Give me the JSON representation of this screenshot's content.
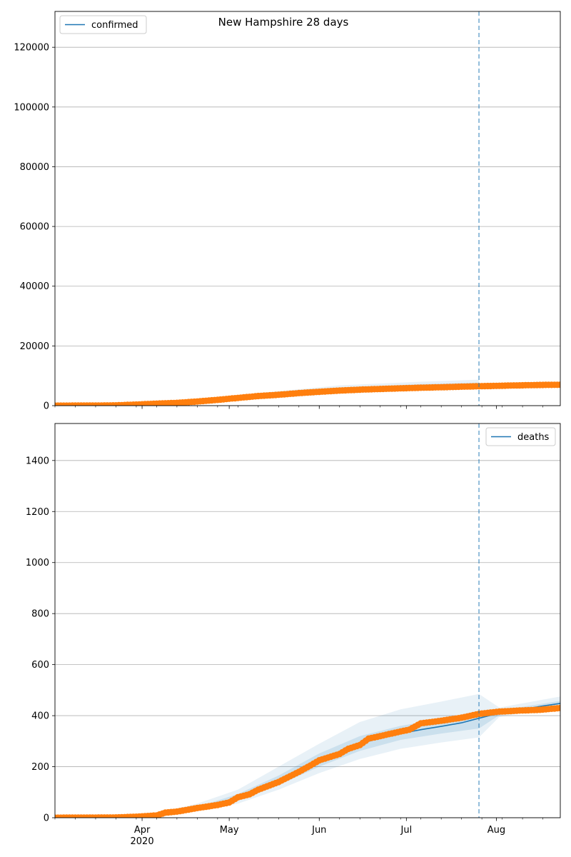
{
  "figure_title": "New Hampshire 28 days",
  "colors": {
    "model": "#1f77b4",
    "observed": "#ff7f0e",
    "band": "#1f77b4",
    "grid": "#b0b0b0",
    "forecast_line": "#1f77b4"
  },
  "chart_data": [
    {
      "type": "line",
      "panel": "top",
      "title": "New Hampshire 28 days",
      "legend": {
        "entries": [
          "confirmed"
        ],
        "placement": "upper-left"
      },
      "x_axis": {
        "type": "date",
        "range": [
          "2020-03-02",
          "2020-08-23"
        ],
        "tick_labels": [],
        "year_label": ""
      },
      "y_axis": {
        "range": [
          0,
          132000
        ],
        "ticks": [
          0,
          20000,
          40000,
          60000,
          80000,
          100000,
          120000
        ]
      },
      "grid": "horizontal",
      "forecast_start": "2020-07-26",
      "model_series": {
        "name": "confirmed",
        "points": [
          [
            "2020-03-02",
            0
          ],
          [
            "2020-03-16",
            100
          ],
          [
            "2020-03-30",
            450
          ],
          [
            "2020-04-13",
            1000
          ],
          [
            "2020-04-27",
            1900
          ],
          [
            "2020-05-11",
            3100
          ],
          [
            "2020-05-25",
            4300
          ],
          [
            "2020-06-08",
            5300
          ],
          [
            "2020-06-22",
            6000
          ],
          [
            "2020-07-06",
            6500
          ],
          [
            "2020-07-26",
            7000
          ]
        ]
      },
      "bands": {
        "outer": [
          [
            "2020-03-16",
            100,
            300
          ],
          [
            "2020-04-13",
            700,
            1400
          ],
          [
            "2020-05-11",
            2200,
            4200
          ],
          [
            "2020-06-08",
            4000,
            6800
          ],
          [
            "2020-07-06",
            5200,
            8000
          ],
          [
            "2020-07-26",
            5700,
            8700
          ]
        ],
        "inner": [
          [
            "2020-03-16",
            100,
            200
          ],
          [
            "2020-04-13",
            850,
            1200
          ],
          [
            "2020-05-11",
            2600,
            3600
          ],
          [
            "2020-06-08",
            4600,
            6000
          ],
          [
            "2020-07-06",
            5800,
            7200
          ],
          [
            "2020-07-26",
            6300,
            7700
          ]
        ]
      },
      "observed_series": {
        "points": [
          [
            "2020-03-02",
            0
          ],
          [
            "2020-03-16",
            30
          ],
          [
            "2020-03-23",
            100
          ],
          [
            "2020-03-30",
            370
          ],
          [
            "2020-04-06",
            670
          ],
          [
            "2020-04-13",
            930
          ],
          [
            "2020-04-20",
            1390
          ],
          [
            "2020-04-27",
            1940
          ],
          [
            "2020-05-04",
            2590
          ],
          [
            "2020-05-11",
            3220
          ],
          [
            "2020-05-18",
            3650
          ],
          [
            "2020-05-25",
            4200
          ],
          [
            "2020-06-01",
            4650
          ],
          [
            "2020-06-08",
            5050
          ],
          [
            "2020-06-15",
            5360
          ],
          [
            "2020-06-22",
            5590
          ],
          [
            "2020-06-29",
            5800
          ],
          [
            "2020-07-06",
            6000
          ],
          [
            "2020-07-13",
            6180
          ],
          [
            "2020-07-20",
            6350
          ],
          [
            "2020-07-26",
            6500
          ],
          [
            "2020-08-02",
            6650
          ],
          [
            "2020-08-09",
            6800
          ],
          [
            "2020-08-16",
            6930
          ],
          [
            "2020-08-23",
            7000
          ]
        ]
      }
    },
    {
      "type": "line",
      "panel": "bottom",
      "legend": {
        "entries": [
          "deaths"
        ],
        "placement": "upper-right"
      },
      "x_axis": {
        "type": "date",
        "range": [
          "2020-03-02",
          "2020-08-23"
        ],
        "tick_labels": [
          {
            "date": "2020-04-01",
            "label": "Apr"
          },
          {
            "date": "2020-05-01",
            "label": "May"
          },
          {
            "date": "2020-06-01",
            "label": "Jun"
          },
          {
            "date": "2020-07-01",
            "label": "Jul"
          },
          {
            "date": "2020-08-01",
            "label": "Aug"
          }
        ],
        "year_label": "2020"
      },
      "y_axis": {
        "range": [
          0,
          1545
        ],
        "ticks": [
          0,
          200,
          400,
          600,
          800,
          1000,
          1200,
          1400
        ]
      },
      "grid": "horizontal",
      "forecast_start": "2020-07-26",
      "model_series": {
        "name": "deaths",
        "points": [
          [
            "2020-03-02",
            0
          ],
          [
            "2020-03-23",
            1
          ],
          [
            "2020-04-06",
            10
          ],
          [
            "2020-04-13",
            22
          ],
          [
            "2020-04-20",
            36
          ],
          [
            "2020-04-27",
            55
          ],
          [
            "2020-05-04",
            80
          ],
          [
            "2020-05-11",
            110
          ],
          [
            "2020-05-18",
            145
          ],
          [
            "2020-05-25",
            185
          ],
          [
            "2020-06-01",
            225
          ],
          [
            "2020-06-08",
            260
          ],
          [
            "2020-06-15",
            290
          ],
          [
            "2020-06-22",
            312
          ],
          [
            "2020-06-29",
            330
          ],
          [
            "2020-07-06",
            345
          ],
          [
            "2020-07-13",
            358
          ],
          [
            "2020-07-20",
            372
          ],
          [
            "2020-07-26",
            390
          ],
          [
            "2020-08-02",
            410
          ],
          [
            "2020-08-09",
            422
          ],
          [
            "2020-08-16",
            436
          ],
          [
            "2020-08-23",
            448
          ]
        ]
      },
      "bands": {
        "outer": [
          [
            "2020-04-06",
            5,
            18
          ],
          [
            "2020-04-20",
            25,
            55
          ],
          [
            "2020-05-04",
            55,
            110
          ],
          [
            "2020-05-18",
            110,
            200
          ],
          [
            "2020-06-01",
            175,
            290
          ],
          [
            "2020-06-15",
            230,
            375
          ],
          [
            "2020-06-29",
            270,
            425
          ],
          [
            "2020-07-13",
            295,
            455
          ],
          [
            "2020-07-26",
            315,
            485
          ],
          [
            "2020-08-02",
            395,
            432
          ],
          [
            "2020-08-23",
            435,
            475
          ]
        ],
        "inner": [
          [
            "2020-04-06",
            7,
            13
          ],
          [
            "2020-04-20",
            30,
            42
          ],
          [
            "2020-05-04",
            68,
            93
          ],
          [
            "2020-05-18",
            128,
            165
          ],
          [
            "2020-06-01",
            200,
            252
          ],
          [
            "2020-06-15",
            262,
            320
          ],
          [
            "2020-06-29",
            305,
            360
          ],
          [
            "2020-07-13",
            330,
            387
          ],
          [
            "2020-07-26",
            350,
            412
          ],
          [
            "2020-08-02",
            402,
            420
          ],
          [
            "2020-08-23",
            440,
            458
          ]
        ]
      },
      "observed_series": {
        "points": [
          [
            "2020-03-02",
            0
          ],
          [
            "2020-03-23",
            1
          ],
          [
            "2020-03-30",
            4
          ],
          [
            "2020-04-06",
            9
          ],
          [
            "2020-04-09",
            20
          ],
          [
            "2020-04-13",
            24
          ],
          [
            "2020-04-20",
            38
          ],
          [
            "2020-04-27",
            50
          ],
          [
            "2020-05-01",
            60
          ],
          [
            "2020-05-04",
            80
          ],
          [
            "2020-05-08",
            92
          ],
          [
            "2020-05-11",
            110
          ],
          [
            "2020-05-18",
            140
          ],
          [
            "2020-05-25",
            180
          ],
          [
            "2020-05-29",
            205
          ],
          [
            "2020-06-01",
            225
          ],
          [
            "2020-06-08",
            250
          ],
          [
            "2020-06-11",
            270
          ],
          [
            "2020-06-15",
            285
          ],
          [
            "2020-06-18",
            310
          ],
          [
            "2020-06-22",
            320
          ],
          [
            "2020-06-29",
            338
          ],
          [
            "2020-07-02",
            345
          ],
          [
            "2020-07-06",
            370
          ],
          [
            "2020-07-13",
            380
          ],
          [
            "2020-07-20",
            392
          ],
          [
            "2020-07-26",
            407
          ],
          [
            "2020-08-02",
            416
          ],
          [
            "2020-08-09",
            420
          ],
          [
            "2020-08-16",
            423
          ],
          [
            "2020-08-23",
            430
          ]
        ]
      }
    }
  ]
}
